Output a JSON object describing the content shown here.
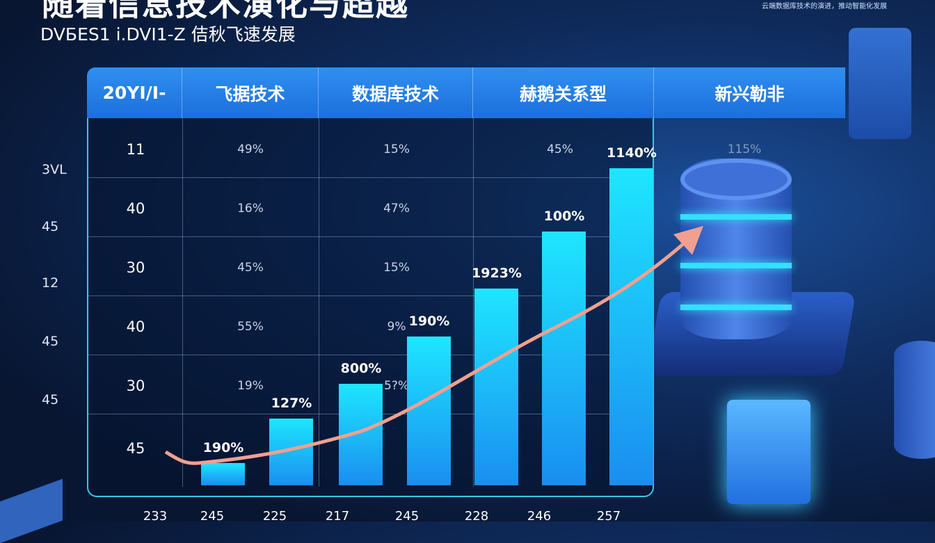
{
  "title": "随着信息技术演化与超越",
  "subtitle": "DVБES1 i.DVI1-Z 佶秋飞速发展",
  "top_note": "云端数据库技术的演进，推动智能化发展",
  "colors": {
    "header": "#2a86ee",
    "bar_top": "#1ee6ff",
    "bar_bottom": "#1a8ef0",
    "trend": "#f0a090",
    "border": "#38c7e8"
  },
  "table": {
    "headers": [
      "20YI/I-",
      "飞据技术",
      "数据库技术",
      "赫鹅关系型",
      "新兴勒非"
    ],
    "row_labels": [
      "11",
      "40",
      "30",
      "40",
      "30",
      "45"
    ],
    "outer_labels": [
      "3VL",
      "45",
      "12",
      "45",
      "45"
    ],
    "col2": [
      "49%",
      "16%",
      "45%",
      "55%",
      "19%"
    ],
    "col3": [
      "15%",
      "47%",
      "15%",
      "9%",
      "5?%"
    ],
    "col4": [
      "45%"
    ],
    "col5": [
      "115%"
    ]
  },
  "chart_data": {
    "type": "bar",
    "bar_labels": [
      "190%",
      "127%",
      "800%",
      "190%",
      "1923%",
      "100%",
      "1140%"
    ],
    "values": [
      7,
      21,
      32,
      47,
      62,
      80,
      100
    ],
    "x_ticks": [
      "233",
      "245",
      "225",
      "217",
      "245",
      "228",
      "246",
      "257"
    ],
    "trend_line": "rising curve with arrow",
    "grid": true
  }
}
